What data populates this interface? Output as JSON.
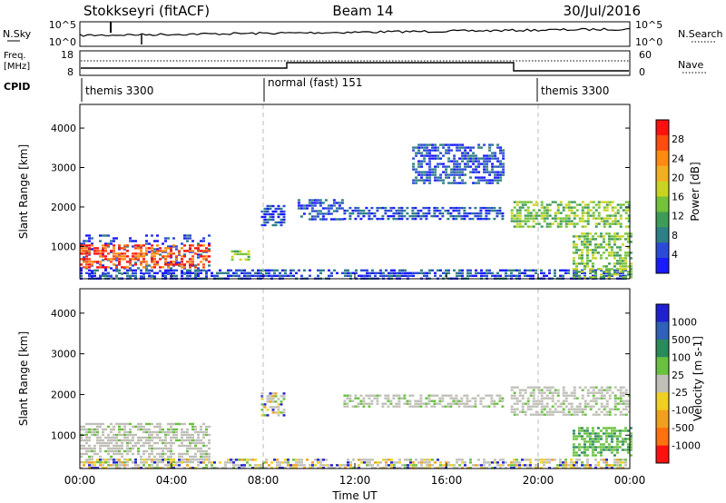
{
  "header": {
    "station": "Stokkseyri (fitACF)",
    "beam": "Beam 14",
    "date": "30/Jul/2016"
  },
  "noise_panel": {
    "left_label": "N.Sky",
    "left_ticks": [
      "10^5",
      "10^0"
    ],
    "right_ticks": [
      "10^5",
      "10^0"
    ],
    "right_label": "N.Search"
  },
  "freq_panel": {
    "left_label_1": "Freq.",
    "left_label_2": "[MHz]",
    "left_ticks": [
      "18",
      "8"
    ],
    "right_ticks": [
      "60",
      "0"
    ],
    "right_label": "Nave"
  },
  "cpid_panel": {
    "label": "CPID",
    "segments": [
      {
        "name": "themis 3300",
        "start_hour": 0
      },
      {
        "name": "normal (fast) 151",
        "start_hour": 8
      },
      {
        "name": "themis 3300",
        "start_hour": 20
      }
    ]
  },
  "chart_data": [
    {
      "type": "heatmap",
      "title": "Power",
      "ylabel": "Slant Range [km]",
      "xlabel": "",
      "xlim": [
        0,
        24
      ],
      "ylim": [
        180,
        4600
      ],
      "yticks": [
        1000,
        2000,
        3000,
        4000
      ],
      "colorbar": {
        "label": "Power [dB]",
        "ticks": [
          "4",
          "8",
          "12",
          "16",
          "20",
          "24",
          "28"
        ],
        "colors": [
          "#1a1aff",
          "#2b4bd6",
          "#2f7f86",
          "#3f9b58",
          "#74c23a",
          "#c8d420",
          "#f0b020",
          "#ff8a10",
          "#ff4a10",
          "#ff1010"
        ]
      },
      "regions": [
        {
          "hours": [
            0,
            5.6
          ],
          "range_km": [
            200,
            1300
          ],
          "level": "low",
          "note": "scattered"
        },
        {
          "hours": [
            0,
            5.6
          ],
          "range_km": [
            450,
            1050
          ],
          "level": "high"
        },
        {
          "hours": [
            0,
            23.8
          ],
          "range_km": [
            200,
            420
          ],
          "level": "low"
        },
        {
          "hours": [
            6.6,
            7.4
          ],
          "range_km": [
            650,
            900
          ],
          "level": "mid"
        },
        {
          "hours": [
            7.9,
            8.9
          ],
          "range_km": [
            1500,
            2050
          ],
          "level": "low"
        },
        {
          "hours": [
            9.5,
            11.5
          ],
          "range_km": [
            1700,
            2200
          ],
          "level": "low"
        },
        {
          "hours": [
            11.5,
            18.5
          ],
          "range_km": [
            1700,
            2000
          ],
          "level": "low"
        },
        {
          "hours": [
            14.5,
            18.5
          ],
          "range_km": [
            2600,
            3600
          ],
          "level": "low"
        },
        {
          "hours": [
            18.8,
            24
          ],
          "range_km": [
            1500,
            2150
          ],
          "level": "mid"
        },
        {
          "hours": [
            21.5,
            24
          ],
          "range_km": [
            200,
            1350
          ],
          "level": "mid"
        }
      ]
    },
    {
      "type": "heatmap",
      "title": "Velocity",
      "ylabel": "Slant Range [km]",
      "xlabel": "Time UT",
      "xlim": [
        0,
        24
      ],
      "ylim": [
        180,
        4600
      ],
      "yticks": [
        1000,
        2000,
        3000,
        4000
      ],
      "xticks": [
        "00:00",
        "04:00",
        "08:00",
        "12:00",
        "16:00",
        "20:00",
        "00:00"
      ],
      "colorbar": {
        "label": "Velocity [m s-1]",
        "ticks": [
          "1000",
          "500",
          "100",
          "25",
          "-25",
          "-100",
          "-500",
          "-1000"
        ],
        "colors": [
          "#2020d0",
          "#3060b8",
          "#2b8a5c",
          "#6ac040",
          "#c0c0b8",
          "#f0d020",
          "#f0a020",
          "#ff7010",
          "#ff1010"
        ]
      },
      "regions": [
        {
          "hours": [
            0,
            5.6
          ],
          "range_km": [
            300,
            1300
          ],
          "level": "ground"
        },
        {
          "hours": [
            0,
            23.8
          ],
          "range_km": [
            200,
            420
          ],
          "level": "mixed"
        },
        {
          "hours": [
            7.9,
            8.9
          ],
          "range_km": [
            1500,
            2050
          ],
          "level": "mixed"
        },
        {
          "hours": [
            11.5,
            18.5
          ],
          "range_km": [
            1700,
            2000
          ],
          "level": "ground"
        },
        {
          "hours": [
            18.8,
            24
          ],
          "range_km": [
            1500,
            2200
          ],
          "level": "ground"
        },
        {
          "hours": [
            21.5,
            24
          ],
          "range_km": [
            500,
            1200
          ],
          "level": "positive"
        }
      ]
    }
  ]
}
